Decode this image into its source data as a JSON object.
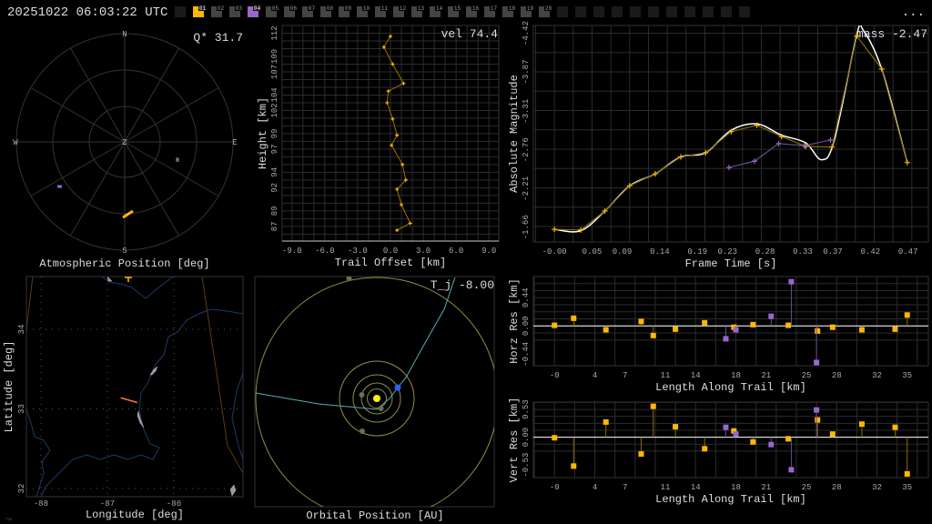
{
  "header": {
    "timestamp": "20251022 06:03:22 UTC",
    "more_label": "...",
    "stations": [
      {
        "label": "",
        "color": "#1a1a1a"
      },
      {
        "label": "01",
        "color": "#ffb800"
      },
      {
        "label": "02",
        "color": "#444444"
      },
      {
        "label": "03",
        "color": "#444444"
      },
      {
        "label": "04",
        "color": "#9966cc"
      },
      {
        "label": "05",
        "color": "#444444"
      },
      {
        "label": "06",
        "color": "#444444"
      },
      {
        "label": "07",
        "color": "#444444"
      },
      {
        "label": "08",
        "color": "#444444"
      },
      {
        "label": "09",
        "color": "#444444"
      },
      {
        "label": "10",
        "color": "#444444"
      },
      {
        "label": "11",
        "color": "#444444"
      },
      {
        "label": "12",
        "color": "#444444"
      },
      {
        "label": "13",
        "color": "#444444"
      },
      {
        "label": "14",
        "color": "#444444"
      },
      {
        "label": "15",
        "color": "#444444"
      },
      {
        "label": "16",
        "color": "#444444"
      },
      {
        "label": "17",
        "color": "#444444"
      },
      {
        "label": "18",
        "color": "#444444"
      },
      {
        "label": "19",
        "color": "#444444"
      },
      {
        "label": "20",
        "color": "#444444"
      },
      {
        "label": "",
        "color": "#1a1a1a"
      },
      {
        "label": "",
        "color": "#1a1a1a"
      },
      {
        "label": "",
        "color": "#1a1a1a"
      },
      {
        "label": "",
        "color": "#1a1a1a"
      },
      {
        "label": "",
        "color": "#1a1a1a"
      },
      {
        "label": "",
        "color": "#1a1a1a"
      },
      {
        "label": "",
        "color": "#1a1a1a"
      },
      {
        "label": "",
        "color": "#1a1a1a"
      },
      {
        "label": "",
        "color": "#1a1a1a"
      },
      {
        "label": "",
        "color": "#1a1a1a"
      },
      {
        "label": "",
        "color": "#1a1a1a"
      }
    ]
  },
  "colors": {
    "station_a": "#ffb800",
    "station_b": "#9966cc",
    "fit": "#ffffff",
    "grid": "#2c2c2c",
    "earth": "#2266ff",
    "sun": "#ffee00",
    "orbit": "#8f8f45",
    "trajectory": "#5aaab8"
  },
  "polar": {
    "title": "Atmospheric Position [deg]",
    "stat": "Q* 31.7",
    "compass": {
      "N": "N",
      "S": "S",
      "E": "E",
      "W": "W",
      "Z": "Z"
    },
    "radiant_label": "R"
  },
  "map": {
    "xlabel": "Longitude [deg]",
    "ylabel": "Latitude [deg]",
    "lon_ticks": [
      "-88",
      "-87",
      "-86"
    ],
    "lat_ticks": [
      "34",
      "33",
      "32"
    ],
    "track": [
      [
        -86.8,
        33.14
      ],
      [
        -86.55,
        33.08
      ]
    ],
    "corner_mark": "ಌ⊌"
  },
  "orbit": {
    "title": "Orbital Position [AU]",
    "stat": "T_j -8.00"
  },
  "chart_data": [
    {
      "type": "line",
      "name_key": "height_profile",
      "stat": "vel 74.4",
      "xlabel": "Trail Offset [km]",
      "ylabel": "Height [km]",
      "x_ticks": [
        "-9.0",
        "-6.0",
        "-3.0",
        "0.0",
        "3.0",
        "6.0",
        "9.0"
      ],
      "y_ticks": [
        "87",
        "89",
        "92",
        "94",
        "97",
        "99",
        "102",
        "104",
        "107",
        "109",
        "112"
      ],
      "xlim": [
        -9.9,
        9.9
      ],
      "ylim": [
        85.1,
        113.0
      ],
      "grid": true,
      "series": [
        {
          "color": "#ffb800",
          "points": [
            [
              0.0,
              111.6
            ],
            [
              -0.6,
              110.2
            ],
            [
              0.2,
              108.0
            ],
            [
              1.2,
              105.5
            ],
            [
              -0.2,
              104.5
            ],
            [
              -0.3,
              103.0
            ],
            [
              0.2,
              100.9
            ],
            [
              0.6,
              98.8
            ],
            [
              0.1,
              97.5
            ],
            [
              1.1,
              95.0
            ],
            [
              1.4,
              93.0
            ],
            [
              0.6,
              91.8
            ],
            [
              1.0,
              89.8
            ],
            [
              1.8,
              87.4
            ],
            [
              0.6,
              86.5
            ]
          ]
        }
      ]
    },
    {
      "type": "line",
      "name_key": "light_curve",
      "stat": "mass -2.47",
      "xlabel": "Frame Time [s]",
      "ylabel": "Absolute Magnitude",
      "x_ticks": [
        "-0.00",
        "0.05",
        "0.09",
        "0.14",
        "0.19",
        "0.23",
        "0.28",
        "0.33",
        "0.37",
        "0.42",
        "0.47"
      ],
      "y_ticks": [
        "-4.42",
        "-3.87",
        "-3.31",
        "-2.76",
        "-2.21",
        "-1.66"
      ],
      "xlim": [
        -0.028,
        0.497
      ],
      "ylim": [
        -4.53,
        -1.45
      ],
      "y_inverted": true,
      "grid": true,
      "fit": [
        [
          0.0,
          -1.63
        ],
        [
          0.035,
          -1.61
        ],
        [
          0.067,
          -1.89
        ],
        [
          0.1,
          -2.25
        ],
        [
          0.134,
          -2.42
        ],
        [
          0.168,
          -2.66
        ],
        [
          0.201,
          -2.72
        ],
        [
          0.235,
          -3.04
        ],
        [
          0.269,
          -3.13
        ],
        [
          0.302,
          -2.97
        ],
        [
          0.334,
          -2.86
        ],
        [
          0.355,
          -2.62
        ],
        [
          0.372,
          -2.9
        ],
        [
          0.402,
          -4.4
        ],
        [
          0.41,
          -4.47
        ],
        [
          0.435,
          -3.91
        ],
        [
          0.469,
          -2.58
        ]
      ],
      "series": [
        {
          "color": "#ffb800",
          "points": [
            [
              0.0,
              -1.63
            ],
            [
              0.035,
              -1.62
            ],
            [
              0.067,
              -1.89
            ],
            [
              0.1,
              -2.25
            ],
            [
              0.134,
              -2.42
            ],
            [
              0.168,
              -2.66
            ],
            [
              0.201,
              -2.72
            ],
            [
              0.235,
              -3.02
            ],
            [
              0.269,
              -3.11
            ],
            [
              0.302,
              -2.95
            ],
            [
              0.334,
              -2.81
            ],
            [
              0.369,
              -2.8
            ],
            [
              0.402,
              -4.38
            ],
            [
              0.435,
              -3.91
            ],
            [
              0.469,
              -2.58
            ]
          ]
        },
        {
          "color": "#9966cc",
          "points": [
            [
              0.232,
              -2.51
            ],
            [
              0.266,
              -2.6
            ],
            [
              0.298,
              -2.85
            ],
            [
              0.332,
              -2.82
            ],
            [
              0.367,
              -2.9
            ]
          ]
        }
      ]
    },
    {
      "type": "scatter",
      "name_key": "horizontal_residuals",
      "xlabel": "Length Along Trail [km]",
      "ylabel": "Horz Res [km]",
      "x_ticks": [
        "-0",
        "4",
        "7",
        "11",
        "14",
        "18",
        "21",
        "25",
        "28",
        "32",
        "35"
      ],
      "y_ticks": [
        "0.44",
        "0.00",
        "-0.44"
      ],
      "xlim": [
        -2.1,
        37.1
      ],
      "ylim": [
        -0.62,
        0.77
      ],
      "grid": true,
      "series": [
        {
          "color": "#ffb800",
          "points": [
            [
              0.0,
              0.01
            ],
            [
              1.9,
              0.12
            ],
            [
              5.1,
              -0.06
            ],
            [
              8.6,
              0.07
            ],
            [
              9.8,
              -0.15
            ],
            [
              12.0,
              -0.05
            ],
            [
              14.9,
              0.05
            ],
            [
              17.8,
              -0.02
            ],
            [
              19.7,
              0.02
            ],
            [
              23.2,
              0.01
            ],
            [
              26.1,
              -0.08
            ],
            [
              27.6,
              -0.02
            ],
            [
              30.5,
              -0.06
            ],
            [
              33.8,
              -0.05
            ],
            [
              35.0,
              0.17
            ]
          ]
        },
        {
          "color": "#9966cc",
          "points": [
            [
              17.0,
              -0.2
            ],
            [
              18.0,
              -0.06
            ],
            [
              21.5,
              0.15
            ],
            [
              23.5,
              0.69
            ],
            [
              26.0,
              -0.57
            ]
          ]
        }
      ]
    },
    {
      "type": "scatter",
      "name_key": "vertical_residuals",
      "xlabel": "Length Along Trail [km]",
      "ylabel": "Vert Res [km]",
      "x_ticks": [
        "-0",
        "4",
        "7",
        "11",
        "14",
        "18",
        "21",
        "25",
        "28",
        "32",
        "35"
      ],
      "y_ticks": [
        "0.53",
        "0.00",
        "-0.53"
      ],
      "xlim": [
        -2.1,
        37.1
      ],
      "ylim": [
        -0.77,
        0.67
      ],
      "grid": true,
      "series": [
        {
          "color": "#ffb800",
          "points": [
            [
              0.0,
              -0.01
            ],
            [
              1.9,
              -0.55
            ],
            [
              5.1,
              0.29
            ],
            [
              8.6,
              -0.32
            ],
            [
              9.8,
              0.59
            ],
            [
              12.0,
              0.2
            ],
            [
              14.9,
              -0.22
            ],
            [
              17.8,
              0.12
            ],
            [
              19.7,
              -0.09
            ],
            [
              23.2,
              -0.03
            ],
            [
              26.1,
              0.33
            ],
            [
              27.6,
              0.06
            ],
            [
              30.5,
              0.25
            ],
            [
              33.8,
              0.19
            ],
            [
              35.0,
              -0.7
            ]
          ]
        },
        {
          "color": "#9966cc",
          "points": [
            [
              17.0,
              0.19
            ],
            [
              18.0,
              0.06
            ],
            [
              21.5,
              -0.14
            ],
            [
              23.5,
              -0.62
            ],
            [
              26.0,
              0.52
            ]
          ]
        }
      ]
    }
  ]
}
